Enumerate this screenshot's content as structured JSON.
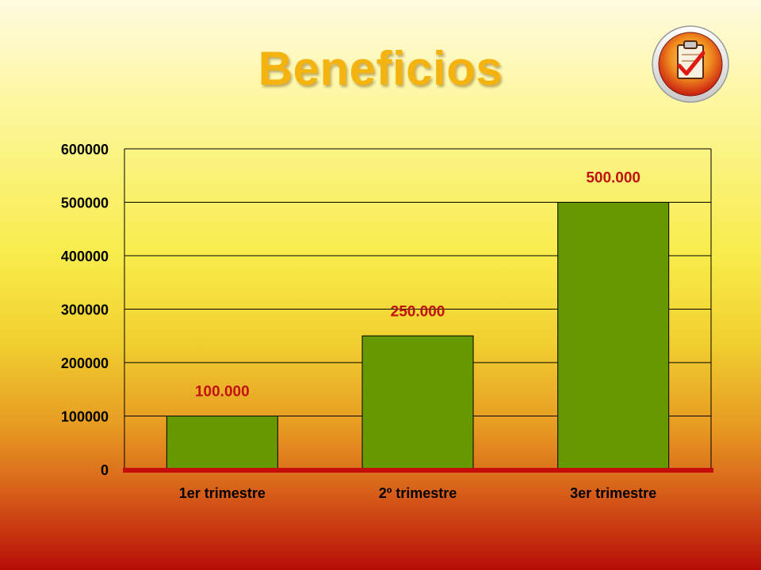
{
  "title": "Beneficios",
  "logo": {
    "icon": "clipboard-check-icon"
  },
  "colors": {
    "bar_fill": "#669900",
    "data_label": "#c0130f",
    "title": "#f4b30f",
    "baseline": "#c40d0a",
    "grid": "#000000"
  },
  "chart_data": {
    "type": "bar",
    "title": "Beneficios",
    "categories": [
      "1er trimestre",
      "2º trimestre",
      "3er trimestre"
    ],
    "values": [
      100000,
      250000,
      500000
    ],
    "data_labels": [
      "100.000",
      "250.000",
      "500.000"
    ],
    "ylim": [
      0,
      600000
    ],
    "yticks": [
      0,
      100000,
      200000,
      300000,
      400000,
      500000,
      600000
    ],
    "ytick_labels": [
      "0",
      "100000",
      "200000",
      "300000",
      "400000",
      "500000",
      "600000"
    ],
    "xlabel": "",
    "ylabel": "",
    "grid": true,
    "legend": false
  }
}
